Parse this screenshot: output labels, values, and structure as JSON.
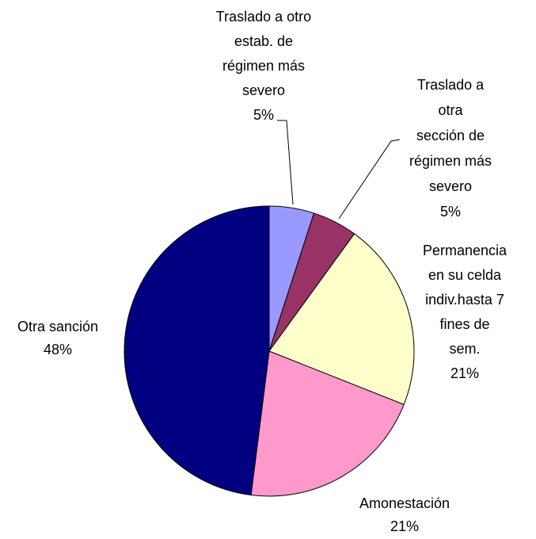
{
  "chart_data": {
    "type": "pie",
    "categories": [
      "Traslado a otro\nestab. de\nrégimen más\nsevero",
      "Traslado a otra\nsección de\nrégimen más\nsevero",
      "Permanencia\nen su celda\nindiv.hasta 7\nfines de sem.",
      "Amonestación",
      "Otra sanción"
    ],
    "values": [
      5,
      5,
      21,
      21,
      48
    ],
    "value_labels": [
      "5%",
      "5%",
      "21%",
      "21%",
      "48%"
    ],
    "colors": [
      "#9999ff",
      "#993366",
      "#ffffcc",
      "#ff99cc",
      "#000080"
    ]
  }
}
